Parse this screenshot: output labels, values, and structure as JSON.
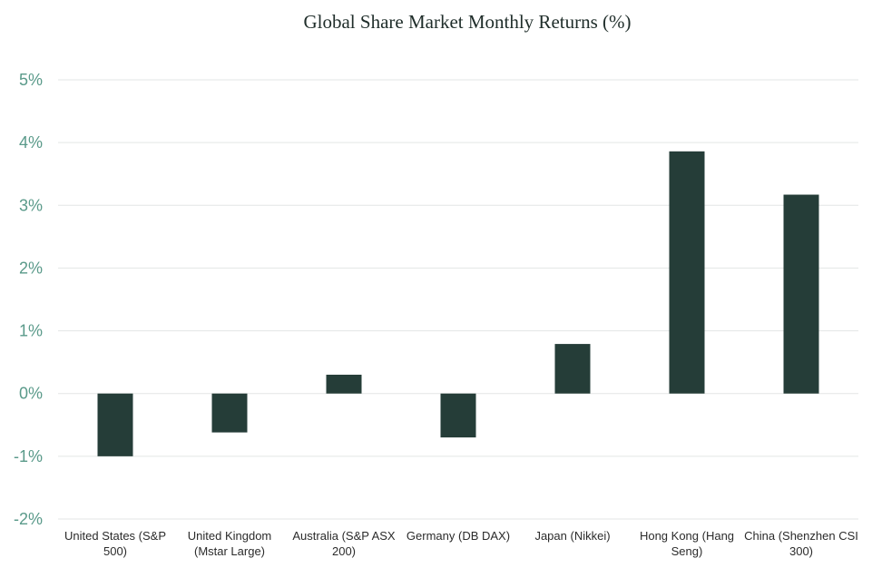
{
  "chart_data": {
    "type": "bar",
    "title": "Global Share Market Monthly Returns (%)",
    "xlabel": "",
    "ylabel": "",
    "categories": [
      "United States (S&P 500)",
      "United Kingdom (Mstar Large)",
      "Australia (S&P ASX 200)",
      "Germany (DB DAX)",
      "Japan (Nikkei)",
      "Hong Kong (Hang Seng)",
      "China (Shenzhen CSI 300)"
    ],
    "category_label_lines": [
      [
        "United States (S&P",
        "500)"
      ],
      [
        "United Kingdom",
        "(Mstar Large)"
      ],
      [
        "Australia (S&P ASX",
        "200)"
      ],
      [
        "Germany (DB DAX)"
      ],
      [
        "Japan (Nikkei)"
      ],
      [
        "Hong Kong (Hang",
        "Seng)"
      ],
      [
        "China (Shenzhen CSI",
        "300)"
      ]
    ],
    "values": [
      -1.0,
      -0.62,
      0.3,
      -0.7,
      0.79,
      3.86,
      3.17
    ],
    "ylim": [
      -2,
      5
    ],
    "yticks": [
      5,
      4,
      3,
      2,
      1,
      0,
      -1,
      -2
    ],
    "ytick_labels": [
      "5%",
      "4%",
      "3%",
      "2%",
      "1%",
      "0%",
      "-1%",
      "-2%"
    ],
    "grid": true,
    "legend": "none",
    "colors": {
      "bar": "#253d38",
      "grid": "#e3e6e5",
      "ytick": "#5a9a8a"
    }
  }
}
